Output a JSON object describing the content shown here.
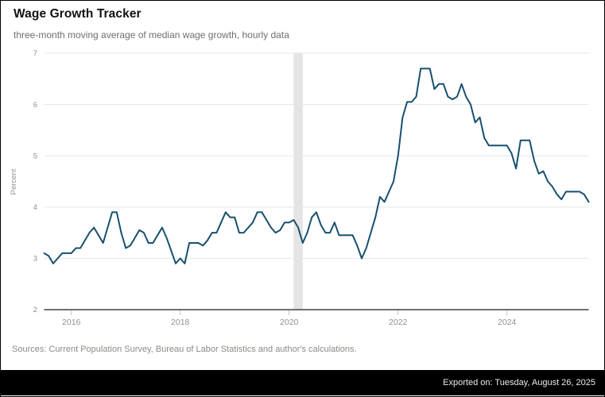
{
  "header": {
    "title": "Wage Growth Tracker",
    "subtitle": "three-month moving average of median wage growth, hourly data"
  },
  "footer": {
    "sources": "Sources: Current Population Survey, Bureau of Labor Statistics and author's calculations.",
    "exported": "Exported on: Tuesday, August 26, 2025"
  },
  "colors": {
    "line": "#17506f",
    "gridline": "#e6e6e6",
    "axis": "#707070",
    "tick": "#c4c4c4",
    "tick_label": "#8f8f8f",
    "recession_band": "#e4e4e4",
    "export_bar_bg": "#000000",
    "export_bar_text": "#ececec"
  },
  "chart_data": {
    "type": "line",
    "title": "Wage Growth Tracker",
    "subtitle": "three-month moving average of median wage growth, hourly data",
    "xlabel": "",
    "ylabel": "Percent",
    "ylim": [
      2,
      7
    ],
    "y_ticks": [
      2,
      3,
      4,
      5,
      6,
      7
    ],
    "x_tick_years": [
      2016,
      2018,
      2020,
      2022,
      2024
    ],
    "x_tick_labels": [
      "2016",
      "2018",
      "2020",
      "2022",
      "2024"
    ],
    "frequency": "monthly",
    "x_start": "2015-07",
    "x_end": "2025-07",
    "grid": "horizontal-only",
    "legend": "none",
    "recession_band": {
      "start": "2020-02",
      "end": "2020-04"
    },
    "series": [
      {
        "name": "Median wage growth, 3-month moving average (hourly)",
        "color": "#17506f",
        "values": [
          3.1,
          3.05,
          2.9,
          3.0,
          3.1,
          3.1,
          3.1,
          3.2,
          3.2,
          3.35,
          3.5,
          3.6,
          3.45,
          3.3,
          3.6,
          3.9,
          3.9,
          3.5,
          3.2,
          3.25,
          3.4,
          3.55,
          3.5,
          3.3,
          3.3,
          3.45,
          3.6,
          3.4,
          3.15,
          2.9,
          3.0,
          2.9,
          3.3,
          3.3,
          3.3,
          3.25,
          3.35,
          3.5,
          3.5,
          3.7,
          3.9,
          3.8,
          3.8,
          3.5,
          3.5,
          3.6,
          3.7,
          3.9,
          3.9,
          3.75,
          3.6,
          3.5,
          3.55,
          3.7,
          3.7,
          3.75,
          3.6,
          3.3,
          3.5,
          3.8,
          3.9,
          3.65,
          3.5,
          3.5,
          3.7,
          3.45,
          3.45,
          3.45,
          3.45,
          3.25,
          3.0,
          3.2,
          3.5,
          3.8,
          4.2,
          4.1,
          4.3,
          4.5,
          5.0,
          5.75,
          6.05,
          6.05,
          6.15,
          6.7,
          6.7,
          6.7,
          6.3,
          6.4,
          6.4,
          6.15,
          6.1,
          6.15,
          6.4,
          6.15,
          6.0,
          5.65,
          5.75,
          5.35,
          5.2,
          5.2,
          5.2,
          5.2,
          5.2,
          5.05,
          4.75,
          5.3,
          5.3,
          5.3,
          4.9,
          4.65,
          4.7,
          4.5,
          4.4,
          4.25,
          4.15,
          4.3,
          4.3,
          4.3,
          4.3,
          4.25,
          4.1
        ]
      }
    ]
  }
}
